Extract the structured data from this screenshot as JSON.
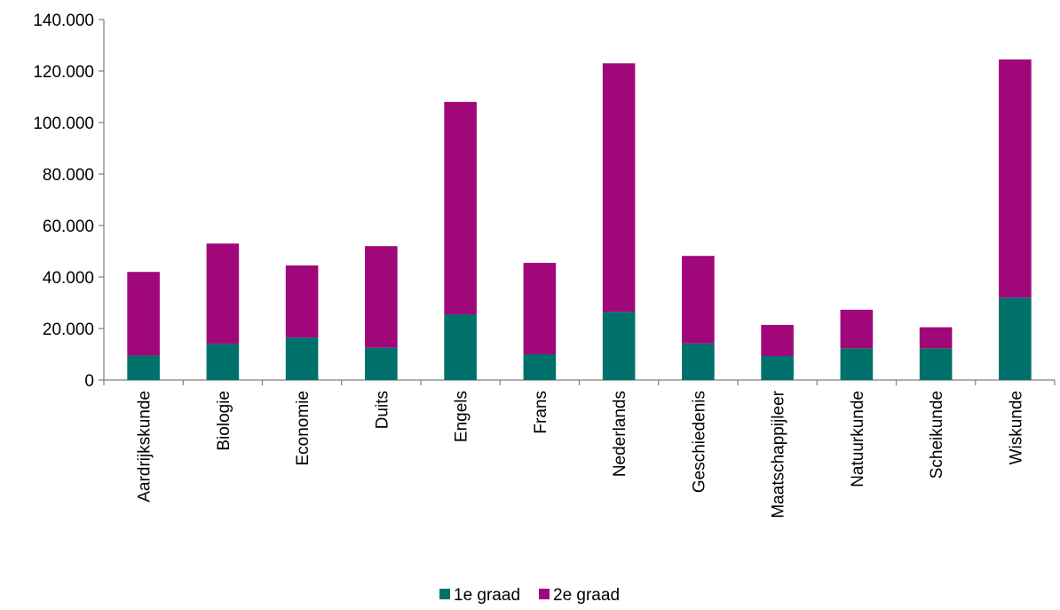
{
  "chart_data": {
    "type": "bar",
    "stacked": true,
    "categories": [
      "Aardrijkskunde",
      "Biologie",
      "Economie",
      "Duits",
      "Engels",
      "Frans",
      "Nederlands",
      "Geschiedenis",
      "Maatschappijleer",
      "Natuurkunde",
      "Scheikunde",
      "Wiskunde"
    ],
    "series": [
      {
        "name": "1e graad",
        "color": "#00706a",
        "values": [
          9500,
          14000,
          16500,
          12500,
          25500,
          10000,
          26500,
          14200,
          9300,
          12300,
          12300,
          32000
        ]
      },
      {
        "name": "2e graad",
        "color": "#a0087a",
        "values": [
          32500,
          39000,
          28000,
          39500,
          82500,
          35500,
          96500,
          34000,
          12100,
          15000,
          8200,
          92500
        ]
      }
    ],
    "ylim": [
      0,
      140000
    ],
    "yticks": [
      0,
      20000,
      40000,
      60000,
      80000,
      100000,
      120000,
      140000
    ],
    "ytick_labels": [
      "0",
      "20.000",
      "40.000",
      "60.000",
      "80.000",
      "100.000",
      "120.000",
      "140.000"
    ],
    "legend_position": "bottom",
    "grid": false
  }
}
